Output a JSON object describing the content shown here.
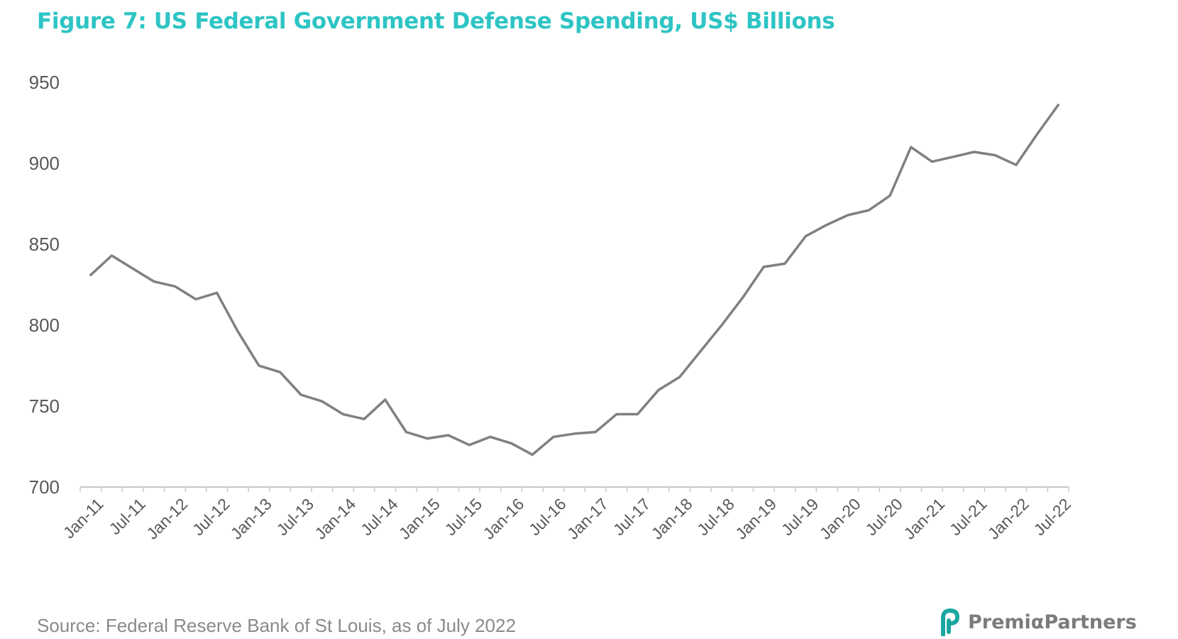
{
  "title": "Figure 7: US Federal Government Defense Spending, US$ Billions",
  "source": "Source: Federal Reserve Bank of St Louis, as of July 2022",
  "brand": {
    "name": "PremiαPartners"
  },
  "colors": {
    "title": "#2ec4c4",
    "line": "#808080",
    "axis": "#c8c8c8",
    "tick_text": "#595959",
    "logo_teal": "#1aa7a0"
  },
  "chart_data": {
    "type": "line",
    "title": "Figure 7: US Federal Government Defense Spending, US$ Billions",
    "xlabel": "",
    "ylabel": "",
    "ylim": [
      700,
      950
    ],
    "yticks": [
      700,
      750,
      800,
      850,
      900,
      950
    ],
    "grid": false,
    "x_tick_labels": [
      "Jan-11",
      "Jul-11",
      "Jan-12",
      "Jul-12",
      "Jan-13",
      "Jul-13",
      "Jan-14",
      "Jul-14",
      "Jan-15",
      "Jul-15",
      "Jan-16",
      "Jul-16",
      "Jan-17",
      "Jul-17",
      "Jan-18",
      "Jul-18",
      "Jan-19",
      "Jul-19",
      "Jan-20",
      "Jul-20",
      "Jan-21",
      "Jul-21",
      "Jan-22",
      "Jul-22"
    ],
    "series": [
      {
        "x": [
          "2011-01",
          "2011-04",
          "2011-07",
          "2011-10",
          "2012-01",
          "2012-04",
          "2012-07",
          "2012-10",
          "2013-01",
          "2013-04",
          "2013-07",
          "2013-10",
          "2014-01",
          "2014-04",
          "2014-07",
          "2014-10",
          "2015-01",
          "2015-04",
          "2015-07",
          "2015-10",
          "2016-01",
          "2016-04",
          "2016-07",
          "2016-10",
          "2017-01",
          "2017-04",
          "2017-07",
          "2017-10",
          "2018-01",
          "2018-04",
          "2018-07",
          "2018-10",
          "2019-01",
          "2019-04",
          "2019-07",
          "2019-10",
          "2020-01",
          "2020-04",
          "2020-07",
          "2020-10",
          "2021-01",
          "2021-04",
          "2021-07",
          "2021-10",
          "2022-01",
          "2022-04",
          "2022-07"
        ],
        "values": [
          831,
          843,
          835,
          827,
          824,
          816,
          820,
          796,
          775,
          771,
          757,
          753,
          745,
          742,
          754,
          734,
          730,
          732,
          726,
          731,
          727,
          720,
          731,
          733,
          734,
          745,
          745,
          760,
          768,
          784,
          800,
          817,
          836,
          838,
          855,
          862,
          868,
          871,
          880,
          910,
          901,
          904,
          907,
          905,
          899,
          918,
          936
        ]
      }
    ]
  }
}
